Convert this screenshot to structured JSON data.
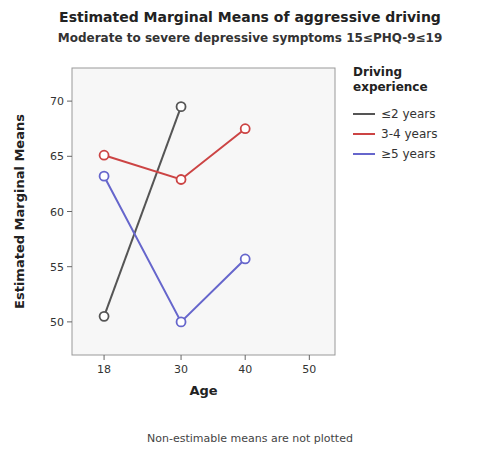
{
  "chart_data": {
    "type": "line",
    "title": "Estimated Marginal Means of aggressive driving",
    "subtitle": "Moderate to severe depressive symptoms   15≤PHQ-9≤19",
    "x_label": "Age",
    "y_label": "Estimated Marginal Means",
    "footnote": "Non-estimable means are not plotted",
    "legend_title": "Driving\nexperience",
    "legend": "right",
    "grid": false,
    "marker": "open-circle",
    "series": [
      {
        "name": "≤2 years",
        "color": "#555555",
        "x": [
          18,
          30
        ],
        "values": [
          50.5,
          69.5
        ]
      },
      {
        "name": "3-4 years",
        "color": "#cc4444",
        "x": [
          18,
          30,
          40
        ],
        "values": [
          65.1,
          62.9,
          67.5
        ]
      },
      {
        "name": "≥5 years",
        "color": "#6666cc",
        "x": [
          18,
          30,
          40
        ],
        "values": [
          63.2,
          50.0,
          55.7
        ]
      }
    ],
    "xlim": [
      13,
      54
    ],
    "xticks": [
      18,
      30,
      40,
      50
    ],
    "ylim": [
      47,
      73
    ],
    "yticks": [
      50,
      55,
      60,
      65,
      70
    ]
  }
}
